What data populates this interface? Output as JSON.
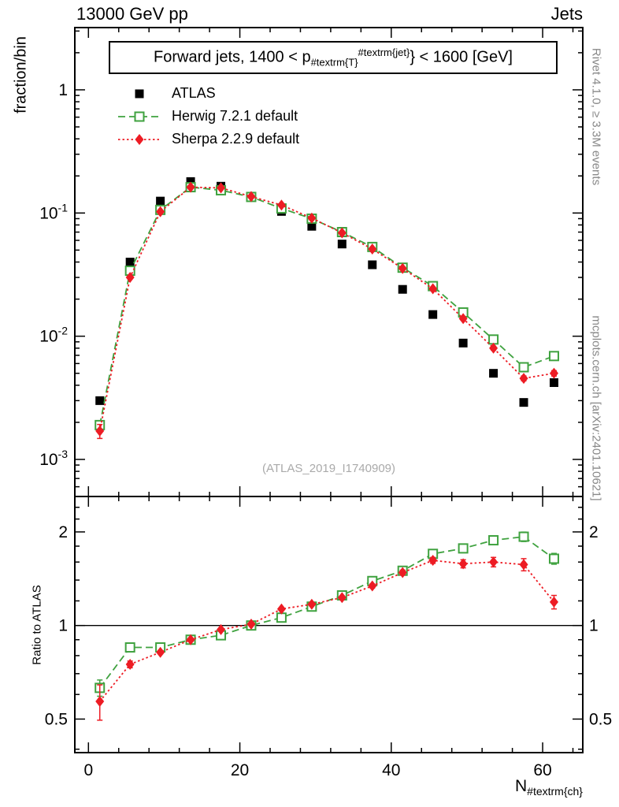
{
  "header": {
    "left": "13000 GeV pp",
    "right": "Jets"
  },
  "side_labels": {
    "top_right": "Rivet 4.1.0, ≥ 3.3M events",
    "bottom_right": "mcplots.cern.ch [arXiv:2401.10621]"
  },
  "watermark": "(ATLAS_2019_I1740909)",
  "main_panel": {
    "title": {
      "prefix": "Forward jets, 1400 < p",
      "sub": "#textrm{T}",
      "sup": "#textrm{jet}",
      "suffix": "} < 1600 [GeV]"
    },
    "ylabel": "fraction/bin",
    "ytick_labels": [
      {
        "value": 1,
        "base": "1",
        "exp": ""
      },
      {
        "value": 0.1,
        "base": "10",
        "exp": "-1"
      },
      {
        "value": 0.01,
        "base": "10",
        "exp": "-2"
      },
      {
        "value": 0.001,
        "base": "10",
        "exp": "-3"
      }
    ]
  },
  "ratio_panel": {
    "ylabel": "Ratio to ATLAS",
    "ytick_labels": [
      {
        "value": 2,
        "text": "2"
      },
      {
        "value": 1,
        "text": "1"
      },
      {
        "value": 0.5,
        "text": "0.5"
      }
    ]
  },
  "xaxis": {
    "title_main": "N",
    "title_sub": "#textrm{ch}",
    "tick_labels": [
      {
        "value": 0,
        "text": "0"
      },
      {
        "value": 20,
        "text": "20"
      },
      {
        "value": 40,
        "text": "40"
      },
      {
        "value": 60,
        "text": "60"
      }
    ]
  },
  "legend": [
    {
      "label": "ATLAS",
      "marker": "square-filled",
      "line": "none",
      "color": "#000000"
    },
    {
      "label": "Herwig 7.2.1 default",
      "marker": "square-open",
      "line": "dashed",
      "color": "#3fa23f"
    },
    {
      "label": "Sherpa 2.2.9 default",
      "marker": "diamond-filled",
      "line": "dotted",
      "color": "#ed1c24"
    }
  ],
  "chart_data": [
    {
      "type": "line",
      "title": "Forward jets, 1400 < p_#textrm{T}^#textrm{jet}} < 1600 [GeV]",
      "xlabel": "N_#textrm{ch}",
      "ylabel": "fraction/bin",
      "xscale": "linear",
      "yscale": "log",
      "xlim": [
        -1.8,
        65.3
      ],
      "ylim": [
        0.0005,
        3.2
      ],
      "grid": false,
      "legend_position": "top-left",
      "x": [
        1.5,
        5.5,
        9.5,
        13.5,
        17.5,
        21.5,
        25.5,
        29.5,
        33.5,
        37.5,
        41.5,
        45.5,
        49.5,
        53.5,
        57.5,
        61.5
      ],
      "series": [
        {
          "name": "ATLAS",
          "color": "#000000",
          "marker": "square-filled",
          "line": "none",
          "values": [
            0.003,
            0.04,
            0.125,
            0.18,
            0.165,
            0.135,
            0.103,
            0.078,
            0.056,
            0.038,
            0.024,
            0.015,
            0.0088,
            0.005,
            0.0029,
            0.0042
          ],
          "yerr_rel": [
            0.05,
            0.03,
            0.02,
            0.015,
            0.015,
            0.015,
            0.015,
            0.015,
            0.02,
            0.02,
            0.02,
            0.025,
            0.03,
            0.04,
            0.05,
            0.05
          ]
        },
        {
          "name": "Herwig 7.2.1 default",
          "color": "#3fa23f",
          "marker": "square-open",
          "line": "dashed",
          "values": [
            0.0019,
            0.034,
            0.106,
            0.162,
            0.153,
            0.135,
            0.109,
            0.09,
            0.07,
            0.053,
            0.036,
            0.0255,
            0.0156,
            0.0094,
            0.0056,
            0.0069
          ],
          "yerr_rel": [
            0.06,
            0.02,
            0.01,
            0.008,
            0.008,
            0.008,
            0.008,
            0.009,
            0.01,
            0.012,
            0.015,
            0.018,
            0.02,
            0.025,
            0.035,
            0.04
          ]
        },
        {
          "name": "Sherpa 2.2.9 default",
          "color": "#ed1c24",
          "marker": "diamond-filled",
          "line": "dotted",
          "values": [
            0.0017,
            0.03,
            0.1025,
            0.162,
            0.16,
            0.136,
            0.116,
            0.091,
            0.069,
            0.051,
            0.0355,
            0.0243,
            0.0139,
            0.008,
            0.00455,
            0.005
          ],
          "yerr_rel": [
            0.13,
            0.025,
            0.012,
            0.01,
            0.01,
            0.01,
            0.01,
            0.01,
            0.012,
            0.015,
            0.018,
            0.022,
            0.03,
            0.035,
            0.045,
            0.05
          ]
        }
      ]
    },
    {
      "type": "line",
      "title": "Ratio to ATLAS",
      "ylabel": "Ratio to ATLAS",
      "xscale": "linear",
      "yscale": "log",
      "xlim": [
        -1.8,
        65.3
      ],
      "ylim": [
        0.39,
        2.6
      ],
      "reference_line": 1.0,
      "x": [
        1.5,
        5.5,
        9.5,
        13.5,
        17.5,
        21.5,
        25.5,
        29.5,
        33.5,
        37.5,
        41.5,
        45.5,
        49.5,
        53.5,
        57.5,
        61.5
      ],
      "series": [
        {
          "name": "Herwig 7.2.1 default",
          "color": "#3fa23f",
          "marker": "square-open",
          "line": "dashed",
          "values": [
            0.63,
            0.85,
            0.85,
            0.9,
            0.93,
            1.0,
            1.06,
            1.15,
            1.25,
            1.39,
            1.5,
            1.7,
            1.77,
            1.88,
            1.93,
            1.64
          ],
          "yerr_rel": [
            0.06,
            0.02,
            0.01,
            0.008,
            0.008,
            0.008,
            0.008,
            0.009,
            0.01,
            0.012,
            0.015,
            0.018,
            0.02,
            0.025,
            0.035,
            0.04
          ]
        },
        {
          "name": "Sherpa 2.2.9 default",
          "color": "#ed1c24",
          "marker": "diamond-filled",
          "line": "dotted",
          "values": [
            0.57,
            0.75,
            0.82,
            0.9,
            0.97,
            1.01,
            1.13,
            1.17,
            1.23,
            1.34,
            1.48,
            1.62,
            1.58,
            1.6,
            1.57,
            1.19
          ],
          "yerr_rel": [
            0.13,
            0.025,
            0.012,
            0.01,
            0.01,
            0.01,
            0.01,
            0.01,
            0.012,
            0.015,
            0.018,
            0.022,
            0.03,
            0.035,
            0.045,
            0.05
          ]
        }
      ]
    }
  ]
}
